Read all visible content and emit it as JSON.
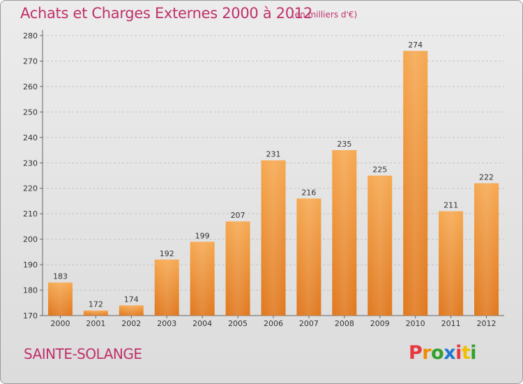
{
  "header": {
    "title": "Achats et Charges Externes 2000 à 2012",
    "subtitle": "(en milliers d'€)"
  },
  "footer": {
    "city": "SAINTE-SOLANGE",
    "brand_letters": [
      "P",
      "r",
      "o",
      "x",
      "i",
      "t",
      "i"
    ],
    "brand_colors": [
      "#e8373d",
      "#f08c00",
      "#33a02c",
      "#1f78d1",
      "#e8373d",
      "#f0c000",
      "#33a02c"
    ]
  },
  "colors": {
    "bar_top": "#f6a850",
    "bar_bottom": "#e0781e",
    "text_accent": "#c0306a"
  },
  "chart_data": {
    "type": "bar",
    "title": "Achats et Charges Externes 2000 à 2012",
    "subtitle": "(en milliers d'€)",
    "categories": [
      "2000",
      "2001",
      "2002",
      "2003",
      "2004",
      "2005",
      "2006",
      "2007",
      "2008",
      "2009",
      "2010",
      "2011",
      "2012"
    ],
    "values": [
      183,
      172,
      174,
      192,
      199,
      207,
      231,
      216,
      235,
      225,
      274,
      211,
      222
    ],
    "ylim": [
      170,
      280
    ],
    "yticks": [
      170,
      180,
      190,
      200,
      210,
      220,
      230,
      240,
      250,
      260,
      270,
      280
    ],
    "grid": true,
    "xlabel": "",
    "ylabel": ""
  }
}
